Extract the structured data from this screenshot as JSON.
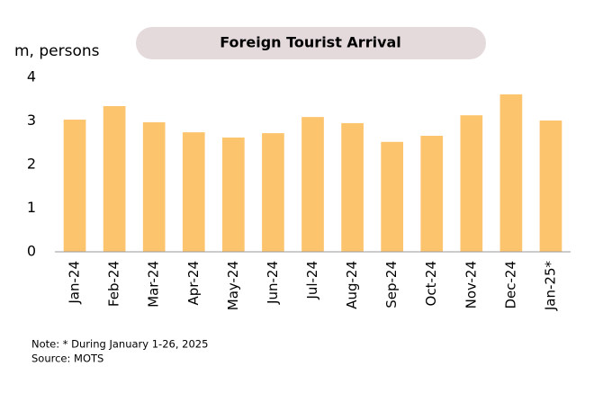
{
  "chart_data": {
    "type": "bar",
    "title": "Foreign Tourist Arrival",
    "y_label": "m, persons",
    "categories": [
      "Jan-24",
      "Feb-24",
      "Mar-24",
      "Apr-24",
      "May-24",
      "Jun-24",
      "Jul-24",
      "Aug-24",
      "Sep-24",
      "Oct-24",
      "Nov-24",
      "Dec-24",
      "Jan-25*"
    ],
    "values": [
      3.03,
      3.34,
      2.97,
      2.74,
      2.62,
      2.72,
      3.09,
      2.95,
      2.52,
      2.66,
      3.13,
      3.61,
      3.01
    ],
    "color": "#fdc46e",
    "ylim": [
      0,
      4
    ],
    "yticks": [
      0,
      1,
      2,
      3,
      4
    ],
    "grid": false,
    "notes": [
      "Note: * During January 1-26, 2025",
      "Source: MOTS"
    ]
  }
}
